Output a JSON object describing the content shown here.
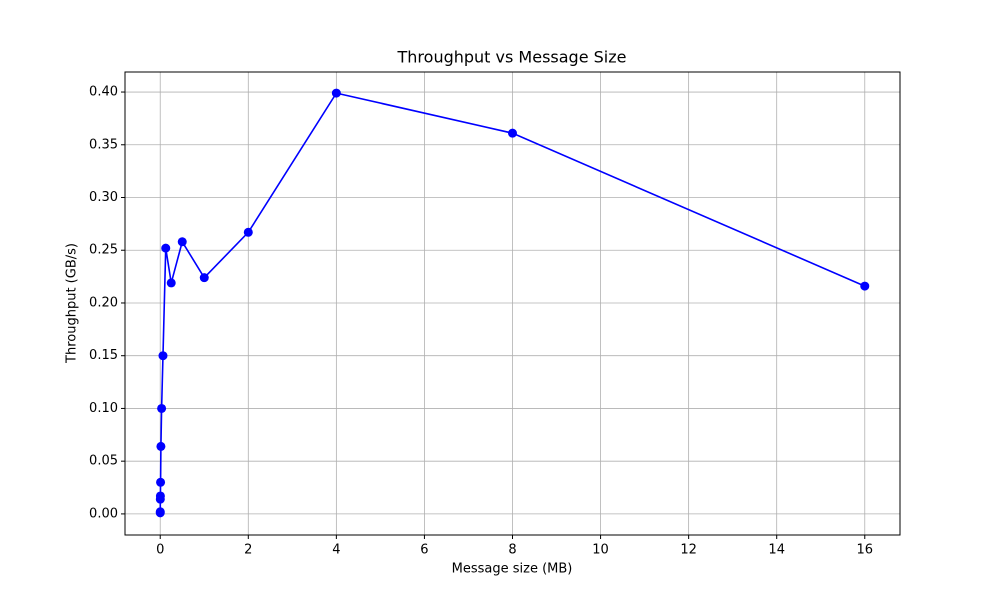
{
  "chart_data": {
    "type": "line",
    "title": "Throughput vs Message Size",
    "x_label": "Message size (MB)",
    "y_label": "Throughput (GB/s)",
    "x": [
      0.00048828125,
      0.0009765625,
      0.001953125,
      0.00390625,
      0.0078125,
      0.015625,
      0.03125,
      0.0625,
      0.125,
      0.25,
      0.5,
      1,
      2,
      4,
      8,
      16
    ],
    "series": [
      {
        "color": "#0000ff",
        "values": [
          0.001,
          0.002,
          0.014,
          0.017,
          0.03,
          0.064,
          0.1,
          0.15,
          0.252,
          0.219,
          0.258,
          0.224,
          0.267,
          0.399,
          0.361,
          0.216
        ]
      }
    ],
    "xlim": [
      -0.8,
      16.8
    ],
    "ylim": [
      -0.02,
      0.419
    ],
    "xticks": [
      0,
      2,
      4,
      6,
      8,
      10,
      12,
      14,
      16
    ],
    "yticks": [
      {
        "value": 0,
        "label": "0.00"
      },
      {
        "value": 0.05,
        "label": "0.05"
      },
      {
        "value": 0.1,
        "label": "0.10"
      },
      {
        "value": 0.15,
        "label": "0.15"
      },
      {
        "value": 0.2,
        "label": "0.20"
      },
      {
        "value": 0.25,
        "label": "0.25"
      },
      {
        "value": 0.3,
        "label": "0.30"
      },
      {
        "value": 0.35,
        "label": "0.35"
      },
      {
        "value": 0.4,
        "label": "0.40"
      }
    ],
    "grid": true
  }
}
